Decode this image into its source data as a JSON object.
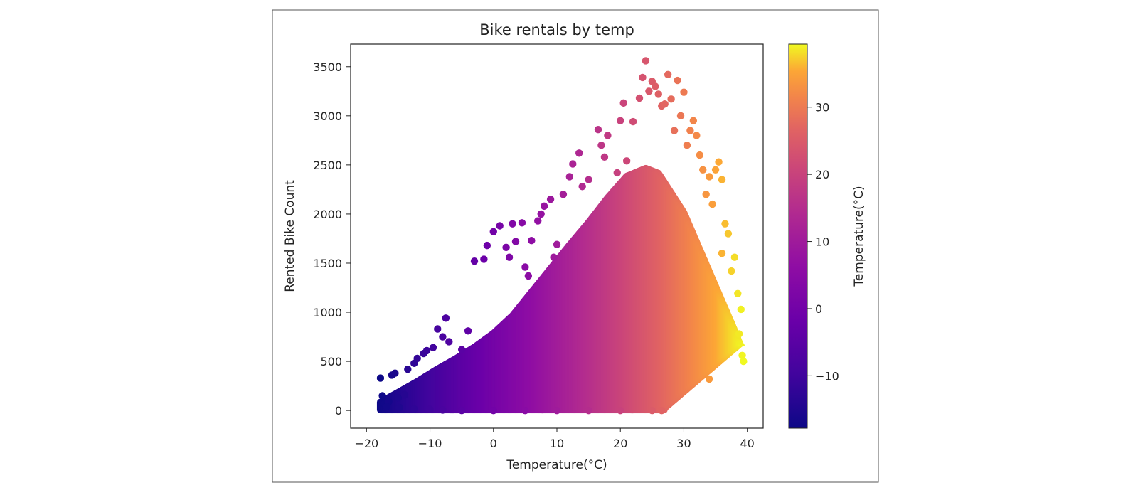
{
  "chart_data": {
    "type": "scatter",
    "title": "Bike rentals by temp",
    "xlabel": "Temperature(°C)",
    "ylabel": "Rented Bike Count",
    "xlim": [
      -22.5,
      42.5
    ],
    "ylim": [
      -180,
      3730
    ],
    "x_ticks": [
      -20,
      -10,
      0,
      10,
      20,
      30,
      40
    ],
    "y_ticks": [
      0,
      500,
      1000,
      1500,
      2000,
      2500,
      3000,
      3500
    ],
    "x_tick_labels": [
      "−20",
      "−10",
      "0",
      "10",
      "20",
      "30",
      "40"
    ],
    "y_tick_labels": [
      "0",
      "500",
      "1000",
      "1500",
      "2000",
      "2500",
      "3000",
      "3500"
    ],
    "grid": false,
    "colormap": "plasma",
    "colorbar": {
      "label": "Temperature(°C)",
      "range": [
        -17.8,
        39.4
      ],
      "ticks": [
        -10,
        0,
        10,
        20,
        30
      ],
      "tick_labels": [
        "−10",
        "0",
        "10",
        "20",
        "30"
      ]
    },
    "series": [
      {
        "color_by": "x",
        "points": [
          [
            -17.8,
            330
          ],
          [
            -17.5,
            150
          ],
          [
            -17.2,
            70
          ],
          [
            -16.5,
            90
          ],
          [
            -16.0,
            360
          ],
          [
            -15.5,
            380
          ],
          [
            -15.0,
            130
          ],
          [
            -14.0,
            160
          ],
          [
            -13.5,
            420
          ],
          [
            -12.5,
            480
          ],
          [
            -12.0,
            530
          ],
          [
            -11.0,
            580
          ],
          [
            -10.5,
            610
          ],
          [
            -9.5,
            640
          ],
          [
            -8.8,
            830
          ],
          [
            -8.0,
            750
          ],
          [
            -7.5,
            940
          ],
          [
            -7.0,
            700
          ],
          [
            -5.0,
            620
          ],
          [
            -4.0,
            810
          ],
          [
            -3.0,
            1520
          ],
          [
            -1.5,
            1540
          ],
          [
            -1.0,
            1680
          ],
          [
            0.0,
            1820
          ],
          [
            1.0,
            1880
          ],
          [
            2.0,
            1660
          ],
          [
            2.5,
            1560
          ],
          [
            3.0,
            1900
          ],
          [
            3.5,
            1720
          ],
          [
            4.5,
            1910
          ],
          [
            5.0,
            1460
          ],
          [
            5.5,
            1370
          ],
          [
            6.0,
            1730
          ],
          [
            7.0,
            1930
          ],
          [
            7.5,
            2000
          ],
          [
            8.0,
            2080
          ],
          [
            9.0,
            2150
          ],
          [
            9.5,
            1560
          ],
          [
            10.0,
            1690
          ],
          [
            11.0,
            2200
          ],
          [
            12.0,
            2380
          ],
          [
            12.5,
            2510
          ],
          [
            13.5,
            2620
          ],
          [
            14.0,
            2280
          ],
          [
            15.0,
            2350
          ],
          [
            16.5,
            2860
          ],
          [
            17.0,
            2700
          ],
          [
            17.5,
            2580
          ],
          [
            18.0,
            2800
          ],
          [
            19.5,
            2420
          ],
          [
            20.0,
            2950
          ],
          [
            20.5,
            3130
          ],
          [
            21.0,
            2540
          ],
          [
            22.0,
            2940
          ],
          [
            23.0,
            3180
          ],
          [
            23.5,
            3390
          ],
          [
            24.0,
            3560
          ],
          [
            24.5,
            3250
          ],
          [
            25.0,
            3350
          ],
          [
            25.5,
            3300
          ],
          [
            26.0,
            3220
          ],
          [
            26.5,
            3100
          ],
          [
            27.0,
            3120
          ],
          [
            27.5,
            3420
          ],
          [
            28.0,
            3170
          ],
          [
            28.5,
            2850
          ],
          [
            29.0,
            3360
          ],
          [
            29.5,
            3000
          ],
          [
            30.0,
            3240
          ],
          [
            30.5,
            2700
          ],
          [
            31.0,
            2850
          ],
          [
            31.5,
            2950
          ],
          [
            32.0,
            2800
          ],
          [
            32.5,
            2600
          ],
          [
            33.0,
            2450
          ],
          [
            33.5,
            2200
          ],
          [
            34.0,
            2380
          ],
          [
            34.5,
            2100
          ],
          [
            35.0,
            2450
          ],
          [
            35.5,
            2530
          ],
          [
            36.0,
            2350
          ],
          [
            36.5,
            1900
          ],
          [
            37.0,
            1800
          ],
          [
            37.5,
            1420
          ],
          [
            38.0,
            1560
          ],
          [
            38.5,
            1190
          ],
          [
            39.0,
            1030
          ],
          [
            39.2,
            560
          ],
          [
            39.4,
            500
          ],
          [
            38.7,
            780
          ],
          [
            36.0,
            1600
          ],
          [
            34.0,
            320
          ],
          [
            -16.8,
            40
          ],
          [
            -14.8,
            30
          ],
          [
            -12.5,
            15
          ],
          [
            -10.0,
            10
          ],
          [
            -8.0,
            5
          ],
          [
            -5.0,
            0
          ],
          [
            0.0,
            0
          ],
          [
            5.0,
            0
          ],
          [
            10.0,
            0
          ],
          [
            15.0,
            0
          ],
          [
            20.0,
            0
          ],
          [
            25.0,
            0
          ],
          [
            26.5,
            0
          ]
        ]
      }
    ]
  }
}
